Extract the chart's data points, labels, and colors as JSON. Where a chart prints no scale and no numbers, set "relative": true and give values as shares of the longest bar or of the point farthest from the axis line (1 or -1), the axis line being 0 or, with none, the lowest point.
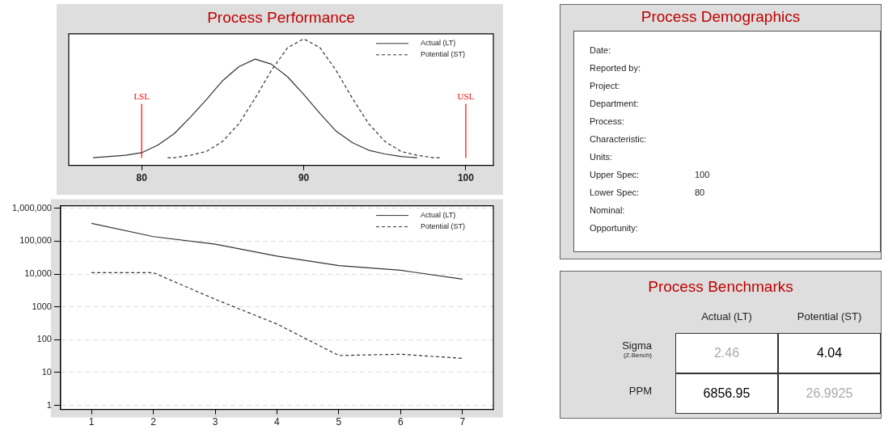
{
  "chart_data": [
    {
      "type": "line",
      "title": "Process Performance",
      "relative": true,
      "xlim": [
        75.5,
        101.7
      ],
      "xticks": [
        80,
        90,
        100
      ],
      "legend": "top right",
      "marker": "none",
      "series": [
        {
          "name": "Actual (LT)",
          "color": "#333333",
          "line_style": "solid",
          "x": [
            77,
            78,
            79,
            80,
            81,
            82,
            83,
            84,
            85,
            86,
            87,
            88,
            89,
            90,
            91,
            92,
            93,
            94,
            95,
            96,
            97
          ],
          "values": [
            0.06,
            0.07,
            0.08,
            0.1,
            0.16,
            0.25,
            0.38,
            0.52,
            0.67,
            0.78,
            0.84,
            0.8,
            0.7,
            0.56,
            0.41,
            0.27,
            0.18,
            0.12,
            0.09,
            0.07,
            0.06
          ]
        },
        {
          "name": "Potential (ST)",
          "color": "#333333",
          "line_style": "dashed",
          "x": [
            81.6,
            82,
            83,
            84,
            85,
            86,
            87,
            88,
            89,
            90,
            91,
            92,
            93,
            94,
            95,
            96,
            97,
            98,
            98.4
          ],
          "values": [
            0.06,
            0.06,
            0.08,
            0.11,
            0.19,
            0.33,
            0.53,
            0.75,
            0.93,
            1,
            0.93,
            0.75,
            0.53,
            0.33,
            0.19,
            0.11,
            0.08,
            0.06,
            0.06
          ]
        }
      ],
      "ref_lines": [
        {
          "axis": "x",
          "value": 80,
          "label": "LSL",
          "color": "#ff0000"
        },
        {
          "axis": "x",
          "value": 100,
          "label": "USL",
          "color": "#ff0000"
        }
      ]
    },
    {
      "type": "line",
      "categories": [
        "1",
        "2",
        "3",
        "4",
        "5",
        "6",
        "7"
      ],
      "log": "y",
      "ylim": [
        0.75,
        1200000
      ],
      "yticks": [
        {
          "value": 1000000,
          "label": "1,000,000"
        },
        {
          "value": 100000,
          "label": "100,000"
        },
        {
          "value": 10000,
          "label": "10,000"
        },
        1000,
        100,
        10,
        1
      ],
      "grid": "y",
      "legend": "top right",
      "marker": "none",
      "series": [
        {
          "name": "Actual (LT)",
          "color": "#333333",
          "line_style": "solid",
          "values": [
            350000,
            138000,
            81000,
            35000,
            18000,
            13000,
            7000
          ]
        },
        {
          "name": "Potential (ST)",
          "color": "#333333",
          "line_style": "dashed",
          "values": [
            11000,
            11000,
            1700,
            300,
            33,
            36,
            27
          ]
        }
      ]
    },
    {
      "type": "other",
      "title": "Process Demographics",
      "annotations": [
        "Date:",
        "Reported by:",
        "Project:",
        "Department:",
        "Process:",
        "Characteristic:",
        "Units:",
        "Upper Spec:",
        "Lower Spec:",
        "Nominal:",
        "Opportunity:"
      ],
      "value_labels": [
        null,
        null,
        null,
        null,
        null,
        null,
        null,
        "100",
        "80",
        null,
        null
      ]
    },
    {
      "type": "other",
      "title": "Process Benchmarks",
      "categories": [
        "Actual (LT)",
        "Potential (ST)"
      ],
      "y_categories": [
        "Sigma",
        "PPM"
      ],
      "annotations": [
        "(Z.Bench)"
      ],
      "cell_labels": [
        [
          "2.46",
          "4.04"
        ],
        [
          "6856.95",
          "26.9925"
        ]
      ],
      "colors": [
        [
          "#aaaaaa",
          "#000000"
        ],
        [
          "#000000",
          "#aaaaaa"
        ]
      ]
    }
  ]
}
